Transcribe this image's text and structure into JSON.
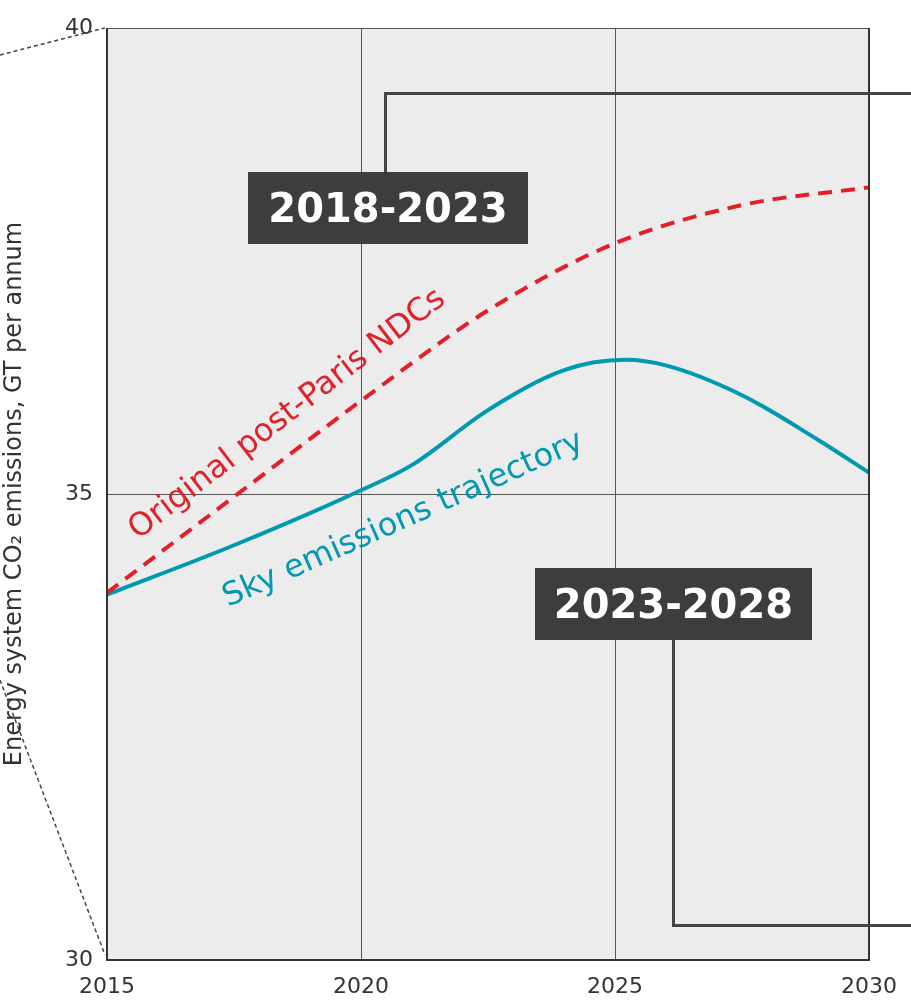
{
  "chart_data": {
    "type": "line",
    "ylabel": "Energy system CO₂ emissions, GT per annum",
    "xlim": [
      2015,
      2030
    ],
    "xticks": [
      2015,
      2020,
      2025,
      2030
    ],
    "ylim": [
      30,
      40
    ],
    "yticks": [
      30,
      35,
      40
    ],
    "grid": true,
    "legend": false,
    "marker": "none",
    "series": [
      {
        "name": "Original post-Paris NDCs",
        "color": "#e3202a",
        "line_style": "dashed",
        "x": [
          2015,
          2017.5,
          2020,
          2022.5,
          2025,
          2027.5,
          2030
        ],
        "values": [
          33.94,
          34.97,
          36.0,
          36.97,
          37.69,
          38.1,
          38.29
        ]
      },
      {
        "name": "Sky emissions trajectory",
        "color": "#0099b0",
        "line_style": "solid",
        "x": [
          2015,
          2017.5,
          2020,
          2021,
          2022.5,
          2024,
          2025.2,
          2026,
          2027.5,
          2029,
          2030
        ],
        "values": [
          33.92,
          34.45,
          35.04,
          35.31,
          35.9,
          36.33,
          36.44,
          36.38,
          36.06,
          35.58,
          35.23
        ]
      }
    ],
    "annotations": [
      "2018-2023",
      "2023-2028"
    ]
  }
}
